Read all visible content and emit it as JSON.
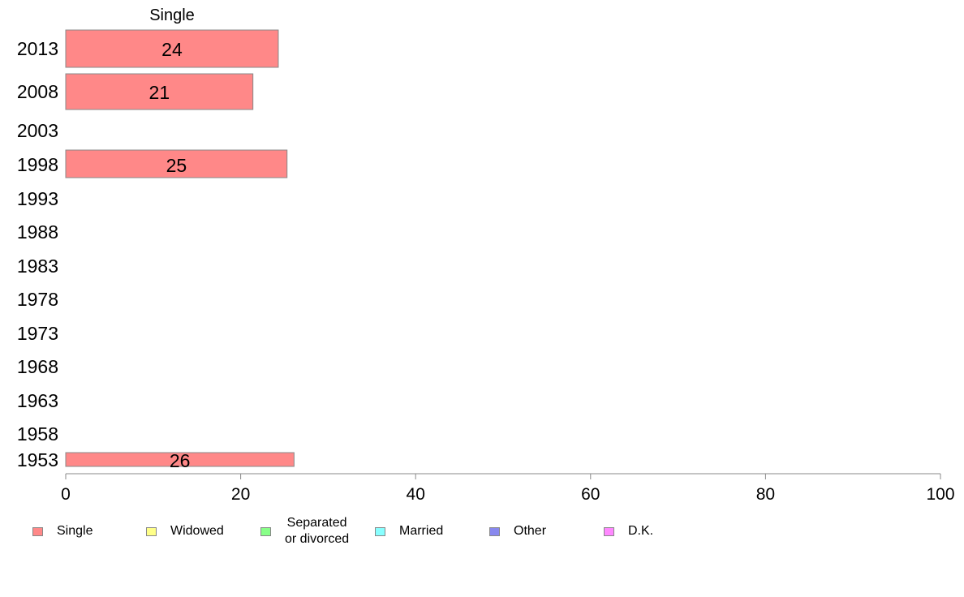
{
  "chart_data": {
    "type": "bar",
    "orientation": "horizontal",
    "title": "Single",
    "categories": [
      "2013",
      "2008",
      "2003",
      "1998",
      "1993",
      "1988",
      "1983",
      "1978",
      "1973",
      "1968",
      "1963",
      "1958",
      "1953"
    ],
    "series": [
      {
        "name": "Single",
        "color": "#ff8888",
        "values": [
          24.3,
          21.4,
          null,
          25.3,
          null,
          null,
          null,
          null,
          null,
          null,
          null,
          null,
          26.1
        ],
        "labels": [
          "24",
          "21",
          "",
          "25",
          "",
          "",
          "",
          "",
          "",
          "",
          "",
          "",
          "26"
        ]
      }
    ],
    "xlim": [
      0,
      100
    ],
    "xticks": [
      "0",
      "20",
      "40",
      "60",
      "80",
      "100"
    ],
    "grid": false,
    "legend_position": "bottom"
  },
  "legend": [
    {
      "label": "Single",
      "color": "#ff8888"
    },
    {
      "label": "Widowed",
      "color": "#ffff88"
    },
    {
      "label": "Separated\nor divorced",
      "color": "#88ff88"
    },
    {
      "label": "Married",
      "color": "#88ffff"
    },
    {
      "label": "Other",
      "color": "#8888ee"
    },
    {
      "label": "D.K.",
      "color": "#ff88ff"
    }
  ]
}
